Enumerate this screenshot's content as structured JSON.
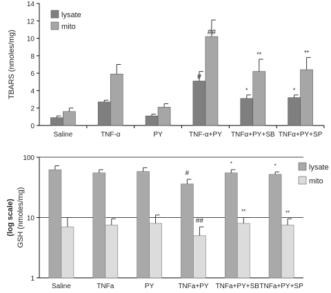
{
  "colors": {
    "lysate_top": "#7f7f7f",
    "mito_top": "#a6a6a6",
    "lysate_bottom": "#a9a9a9",
    "mito_bottom": "#dcdcdc"
  },
  "chart_data": [
    {
      "type": "bar",
      "ylabel": "TBARS (nmoles/mg)",
      "ylim": [
        0,
        14
      ],
      "yticks": [
        0,
        2,
        4,
        6,
        8,
        10,
        12,
        14
      ],
      "categories": [
        "Saline",
        "TNF-α",
        "PY",
        "TNF-α+PY",
        "TNFα+PY+SB",
        "TNFα+PY+SP"
      ],
      "series": [
        {
          "name": "lysate",
          "values": [
            0.9,
            2.7,
            1.1,
            5.1,
            3.1,
            3.2
          ],
          "errors": [
            0.2,
            0.2,
            0.2,
            1.1,
            0.4,
            0.3
          ]
        },
        {
          "name": "mito",
          "values": [
            1.6,
            5.9,
            2.1,
            10.2,
            6.2,
            6.4
          ],
          "errors": [
            0.4,
            1.1,
            0.4,
            1.9,
            1.4,
            1.4
          ]
        }
      ],
      "legend": "top-left",
      "grid": false,
      "annotations": [
        {
          "category": 3,
          "series": 0,
          "text": "#"
        },
        {
          "category": 3,
          "series": 1,
          "text": "##"
        },
        {
          "category": 4,
          "series": 0,
          "text": "*"
        },
        {
          "category": 4,
          "series": 1,
          "text": "**"
        },
        {
          "category": 5,
          "series": 0,
          "text": "*"
        },
        {
          "category": 5,
          "series": 1,
          "text": "**"
        }
      ]
    },
    {
      "type": "bar",
      "ylabel": "GSH (nmoles/mg)",
      "ylabel2": "(log scale)",
      "yscale": "log",
      "ylim": [
        1,
        100
      ],
      "yticks": [
        1,
        10,
        100
      ],
      "reference_line": 10,
      "categories": [
        "Saline",
        "TNFa",
        "PY",
        "TNFa+PY",
        "TNFa+PY+SB",
        "TNFa+PY+SP"
      ],
      "series": [
        {
          "name": "lysate",
          "values": [
            62,
            55,
            58,
            36,
            55,
            52
          ],
          "errors": [
            10,
            7,
            9,
            7,
            7,
            5
          ]
        },
        {
          "name": "mito",
          "values": [
            7,
            7.5,
            8,
            5,
            8,
            7.5
          ],
          "errors": [
            3,
            2,
            3,
            2,
            2,
            2
          ]
        }
      ],
      "legend": "right",
      "grid": false,
      "annotations": [
        {
          "category": 3,
          "series": 0,
          "text": "#"
        },
        {
          "category": 3,
          "series": 1,
          "text": "##"
        },
        {
          "category": 4,
          "series": 0,
          "text": "*"
        },
        {
          "category": 4,
          "series": 1,
          "text": "**"
        },
        {
          "category": 5,
          "series": 0,
          "text": "*"
        },
        {
          "category": 5,
          "series": 1,
          "text": "**"
        }
      ]
    }
  ]
}
